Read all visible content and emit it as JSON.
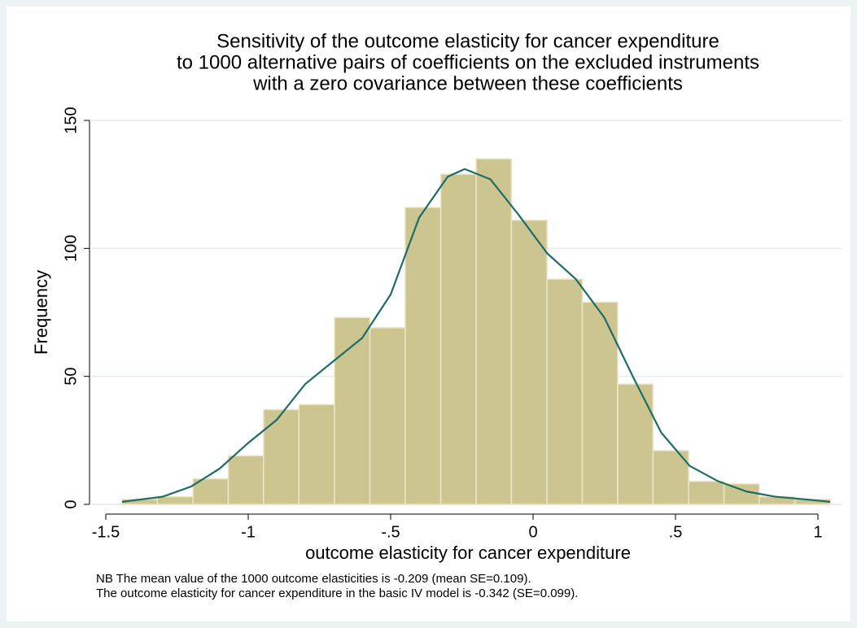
{
  "chart_data": {
    "type": "histogram",
    "title": [
      "Sensitivity of the outcome elasticity for cancer expenditure",
      "to 1000 alternative pairs of coefficients on the excluded instruments",
      "with a zero covariance between these coefficients"
    ],
    "x_label": "outcome elasticity for cancer expenditure",
    "y_label": "Frequency",
    "notes": [
      "NB The mean value of the 1000 outcome elasticities is -0.209 (mean SE=0.109).",
      "The outcome elasticity for cancer expenditure in the basic IV model is -0.342 (SE=0.099)."
    ],
    "bins": [
      -1.443,
      -1.319,
      -1.194,
      -1.07,
      -0.946,
      -0.822,
      -0.697,
      -0.573,
      -0.449,
      -0.324,
      -0.2,
      -0.076,
      0.049,
      0.173,
      0.297,
      0.421,
      0.546,
      0.67,
      0.794,
      0.919,
      1.043
    ],
    "values": [
      2,
      3,
      10,
      19,
      37,
      39,
      73,
      69,
      116,
      129,
      135,
      111,
      88,
      79,
      47,
      21,
      9,
      8,
      3,
      2
    ],
    "color": "#ccc58f",
    "overlay": {
      "type": "line",
      "color": "#1f6b66",
      "x": [
        -1.443,
        -1.3,
        -1.2,
        -1.1,
        -1.0,
        -0.9,
        -0.8,
        -0.7,
        -0.6,
        -0.5,
        -0.4,
        -0.3,
        -0.24,
        -0.15,
        -0.05,
        0.05,
        0.15,
        0.25,
        0.35,
        0.45,
        0.55,
        0.65,
        0.75,
        0.85,
        0.95,
        1.043
      ],
      "values": [
        1,
        3,
        7,
        14,
        24,
        33,
        47,
        56,
        65,
        82,
        112,
        128,
        131,
        127,
        113,
        98,
        88,
        73,
        50,
        28,
        15,
        9,
        5,
        3,
        2,
        1
      ]
    },
    "xlim": [
      -1.5,
      1
    ],
    "ylim": [
      0,
      150
    ],
    "xticks": [
      -1.5,
      -1,
      {
        "value": -0.5,
        "label": "-.5"
      },
      0,
      {
        "value": 0.5,
        "label": ".5"
      },
      1
    ],
    "yticks": [
      0,
      50,
      100,
      150
    ],
    "grid": true
  }
}
